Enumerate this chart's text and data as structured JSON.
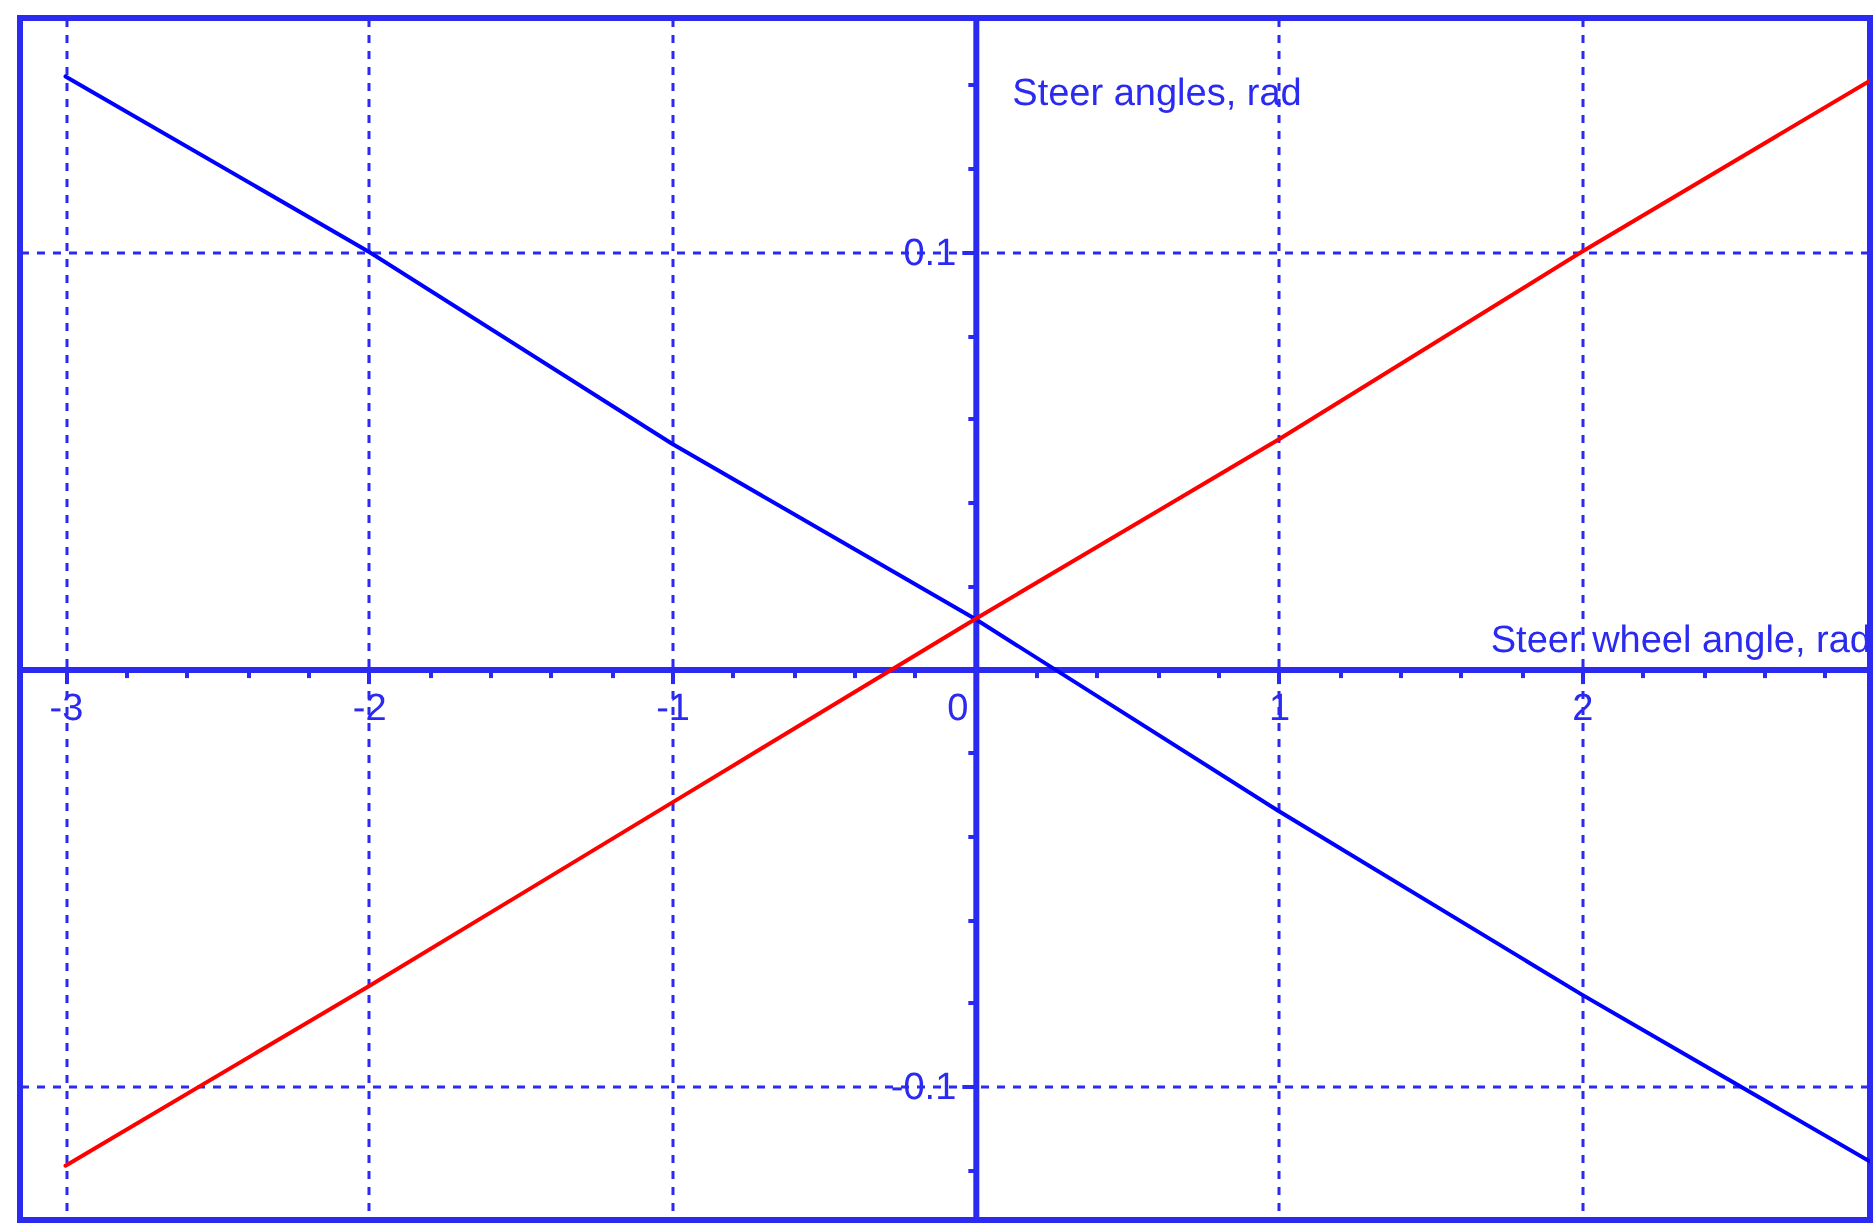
{
  "chart_data": {
    "type": "line",
    "xlabel": "Steer wheel angle, rad",
    "ylabel": "Steer angles, rad",
    "x": [
      -3,
      -2,
      -1,
      0,
      1,
      2,
      2.95
    ],
    "series": [
      {
        "color": "#0000ff",
        "values": [
          0.142,
          0.1,
          0.054,
          0.012,
          -0.034,
          -0.078,
          -0.118
        ]
      },
      {
        "color": "#ff0000",
        "values": [
          -0.119,
          -0.076,
          -0.032,
          0.012,
          0.055,
          0.1,
          0.141
        ]
      }
    ],
    "xlim": [
      -3.15,
      2.95
    ],
    "ylim": [
      -0.132,
      0.156
    ],
    "xticks": [
      -3,
      {
        "value": -2.8,
        "label": null
      },
      {
        "value": -2.6,
        "label": null
      },
      {
        "value": -2.4,
        "label": null
      },
      {
        "value": -2.2,
        "label": null
      },
      -2,
      {
        "value": -1.8,
        "label": null
      },
      {
        "value": -1.6,
        "label": null
      },
      {
        "value": -1.4,
        "label": null
      },
      {
        "value": -1.2,
        "label": null
      },
      -1,
      {
        "value": -0.8,
        "label": null
      },
      {
        "value": -0.6,
        "label": null
      },
      {
        "value": -0.4,
        "label": null
      },
      {
        "value": -0.2,
        "label": null
      },
      0,
      {
        "value": 0.2,
        "label": null
      },
      {
        "value": 0.4,
        "label": null
      },
      {
        "value": 0.6,
        "label": null
      },
      {
        "value": 0.8,
        "label": null
      },
      1,
      {
        "value": 1.2,
        "label": null
      },
      {
        "value": 1.4,
        "label": null
      },
      {
        "value": 1.6,
        "label": null
      },
      {
        "value": 1.8,
        "label": null
      },
      2,
      {
        "value": 2.2,
        "label": null
      },
      {
        "value": 2.4,
        "label": null
      },
      {
        "value": 2.6,
        "label": null
      },
      {
        "value": 2.8,
        "label": null
      }
    ],
    "yticks": [
      {
        "value": -0.12,
        "label": null
      },
      -0.1,
      {
        "value": -0.08,
        "label": null
      },
      {
        "value": -0.06,
        "label": null
      },
      {
        "value": -0.04,
        "label": null
      },
      {
        "value": -0.02,
        "label": null
      },
      {
        "value": 0.02,
        "label": null
      },
      {
        "value": 0.04,
        "label": null
      },
      {
        "value": 0.06,
        "label": null
      },
      {
        "value": 0.08,
        "label": null
      },
      0.1,
      {
        "value": 0.12,
        "label": null
      },
      {
        "value": 0.14,
        "label": null
      }
    ],
    "grid": true,
    "line_style": "solid"
  }
}
